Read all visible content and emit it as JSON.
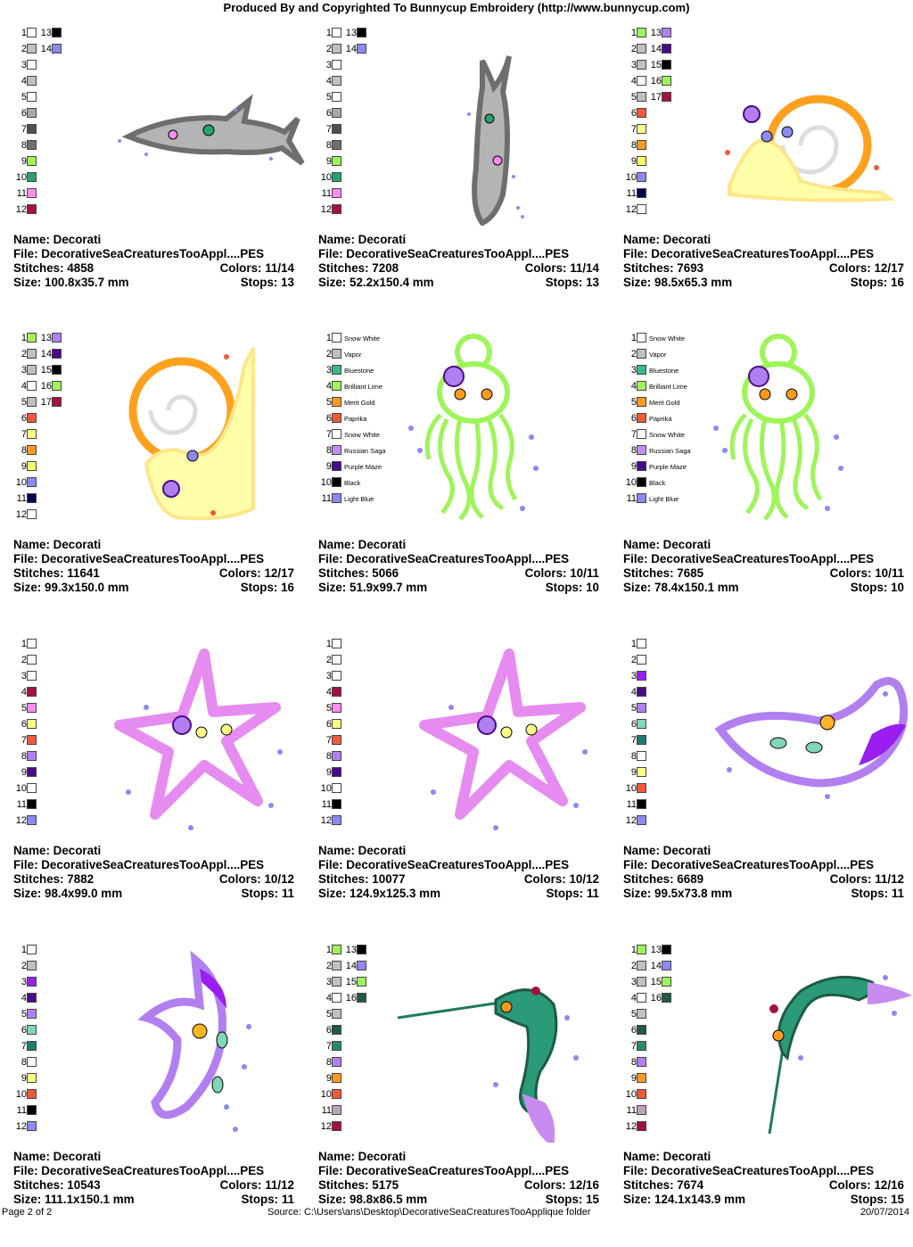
{
  "header": "Produced By and Copyrighted To Bunnycup Embroidery (http://www.bunnycup.com)",
  "labels": {
    "name": "Name:",
    "file": "File:",
    "stitches": "Stitches:",
    "colors": "Colors:",
    "size": "Size:",
    "stops": "Stops:"
  },
  "designs": [
    {
      "name": "Decorati",
      "file": "DecorativeSeaCreaturesTooAppl....PES",
      "stitches": "4858",
      "colors": "11/14",
      "size": "100.8x35.7 mm",
      "stops": "13",
      "art": "shark-h-icon",
      "swatches": [
        [
          "1",
          "#ffffff"
        ],
        [
          "2",
          "#c0c0c0"
        ],
        [
          "3",
          "#ffffff"
        ],
        [
          "4",
          "#c0c0c0"
        ],
        [
          "5",
          "#ffffff"
        ],
        [
          "6",
          "#a9a9a9"
        ],
        [
          "7",
          "#505050"
        ],
        [
          "8",
          "#6e6e6e"
        ],
        [
          "9",
          "#9ef55a"
        ],
        [
          "10",
          "#2aa36b"
        ],
        [
          "11",
          "#ff8cf0"
        ],
        [
          "12",
          "#a5113f"
        ],
        [
          "13",
          "#000000"
        ],
        [
          "14",
          "#8a8af0"
        ]
      ]
    },
    {
      "name": "Decorati",
      "file": "DecorativeSeaCreaturesTooAppl....PES",
      "stitches": "7208",
      "colors": "11/14",
      "size": "52.2x150.4 mm",
      "stops": "13",
      "art": "shark-v-icon",
      "swatches": [
        [
          "1",
          "#ffffff"
        ],
        [
          "2",
          "#c0c0c0"
        ],
        [
          "3",
          "#ffffff"
        ],
        [
          "4",
          "#c0c0c0"
        ],
        [
          "5",
          "#ffffff"
        ],
        [
          "6",
          "#a9a9a9"
        ],
        [
          "7",
          "#505050"
        ],
        [
          "8",
          "#6e6e6e"
        ],
        [
          "9",
          "#9ef55a"
        ],
        [
          "10",
          "#2aa36b"
        ],
        [
          "11",
          "#ff8cf0"
        ],
        [
          "12",
          "#a5113f"
        ],
        [
          "13",
          "#000000"
        ],
        [
          "14",
          "#8a8af0"
        ]
      ]
    },
    {
      "name": "Decorati",
      "file": "DecorativeSeaCreaturesTooAppl....PES",
      "stitches": "7693",
      "colors": "12/17",
      "size": "98.5x65.3 mm",
      "stops": "16",
      "art": "snail-icon",
      "swatches": [
        [
          "1",
          "#9ef55a"
        ],
        [
          "2",
          "#c0c0c0"
        ],
        [
          "3",
          "#c0c0c0"
        ],
        [
          "4",
          "#ffffff"
        ],
        [
          "5",
          "#c0c0c0"
        ],
        [
          "6",
          "#f05a3c"
        ],
        [
          "7",
          "#ffff88"
        ],
        [
          "8",
          "#ff9a1e"
        ],
        [
          "9",
          "#ffff66"
        ],
        [
          "10",
          "#8a8af0"
        ],
        [
          "11",
          "#000050"
        ],
        [
          "12",
          "#ffffff"
        ],
        [
          "13",
          "#b27ff0"
        ],
        [
          "14",
          "#4b0a8a"
        ],
        [
          "15",
          "#000000"
        ],
        [
          "16",
          "#9ef55a"
        ],
        [
          "17",
          "#a5113f"
        ]
      ]
    },
    {
      "name": "Decorati",
      "file": "DecorativeSeaCreaturesTooAppl....PES",
      "stitches": "11641",
      "colors": "12/17",
      "size": "99.3x150.0 mm",
      "stops": "16",
      "art": "snail-v-icon",
      "swatches": [
        [
          "1",
          "#9ef55a"
        ],
        [
          "2",
          "#c0c0c0"
        ],
        [
          "3",
          "#c0c0c0"
        ],
        [
          "4",
          "#ffffff"
        ],
        [
          "5",
          "#c0c0c0"
        ],
        [
          "6",
          "#f05a3c"
        ],
        [
          "7",
          "#ffff88"
        ],
        [
          "8",
          "#ff9a1e"
        ],
        [
          "9",
          "#ffff66"
        ],
        [
          "10",
          "#8a8af0"
        ],
        [
          "11",
          "#000050"
        ],
        [
          "12",
          "#ffffff"
        ],
        [
          "13",
          "#b27ff0"
        ],
        [
          "14",
          "#4b0a8a"
        ],
        [
          "15",
          "#000000"
        ],
        [
          "16",
          "#9ef55a"
        ],
        [
          "17",
          "#a5113f"
        ]
      ]
    },
    {
      "name": "Decorati",
      "file": "DecorativeSeaCreaturesTooAppl....PES",
      "stitches": "5066",
      "colors": "10/11",
      "size": "51.9x99.7 mm",
      "stops": "10",
      "art": "jellyfish-icon",
      "swatches": [
        [
          "1",
          "#ffffff",
          "Snow White"
        ],
        [
          "2",
          "#c0c0c0",
          "Vapor"
        ],
        [
          "3",
          "#3cb496",
          "Bluestone"
        ],
        [
          "4",
          "#9ef55a",
          "Brilliant Lime"
        ],
        [
          "5",
          "#ff9a1e",
          "Merit Gold"
        ],
        [
          "6",
          "#f05a3c",
          "Paprika"
        ],
        [
          "7",
          "#ffffff",
          "Snow White"
        ],
        [
          "8",
          "#c88cf0",
          "Russian Saga"
        ],
        [
          "9",
          "#4b0a8a",
          "Purple Maze"
        ],
        [
          "10",
          "#000000",
          "Black"
        ],
        [
          "11",
          "#8a8af0",
          "Light Blue"
        ]
      ]
    },
    {
      "name": "Decorati",
      "file": "DecorativeSeaCreaturesTooAppl....PES",
      "stitches": "7685",
      "colors": "10/11",
      "size": "78.4x150.1 mm",
      "stops": "10",
      "art": "jellyfish-icon",
      "swatches": [
        [
          "1",
          "#ffffff",
          "Snow White"
        ],
        [
          "2",
          "#c0c0c0",
          "Vapor"
        ],
        [
          "3",
          "#3cb496",
          "Bluestone"
        ],
        [
          "4",
          "#9ef55a",
          "Brilliant Lime"
        ],
        [
          "5",
          "#ff9a1e",
          "Merit Gold"
        ],
        [
          "6",
          "#f05a3c",
          "Paprika"
        ],
        [
          "7",
          "#ffffff",
          "Snow White"
        ],
        [
          "8",
          "#c88cf0",
          "Russian Saga"
        ],
        [
          "9",
          "#4b0a8a",
          "Purple Maze"
        ],
        [
          "10",
          "#000000",
          "Black"
        ],
        [
          "11",
          "#8a8af0",
          "Light Blue"
        ]
      ]
    },
    {
      "name": "Decorati",
      "file": "DecorativeSeaCreaturesTooAppl....PES",
      "stitches": "7882",
      "colors": "10/12",
      "size": "98.4x99.0 mm",
      "stops": "11",
      "art": "starfish-icon",
      "swatches": [
        [
          "1",
          "#ffffff"
        ],
        [
          "2",
          "#ffffff"
        ],
        [
          "3",
          "#ffffff"
        ],
        [
          "4",
          "#a5113f"
        ],
        [
          "5",
          "#ff8cf0"
        ],
        [
          "6",
          "#ffff88"
        ],
        [
          "7",
          "#f05a3c"
        ],
        [
          "8",
          "#b27ff0"
        ],
        [
          "9",
          "#4b0a8a"
        ],
        [
          "10",
          "#ffffff"
        ],
        [
          "11",
          "#000000"
        ],
        [
          "12",
          "#8a8af0"
        ]
      ]
    },
    {
      "name": "Decorati",
      "file": "DecorativeSeaCreaturesTooAppl....PES",
      "stitches": "10077",
      "colors": "10/12",
      "size": "124.9x125.3 mm",
      "stops": "11",
      "art": "starfish-icon",
      "swatches": [
        [
          "1",
          "#ffffff"
        ],
        [
          "2",
          "#ffffff"
        ],
        [
          "3",
          "#ffffff"
        ],
        [
          "4",
          "#a5113f"
        ],
        [
          "5",
          "#ff8cf0"
        ],
        [
          "6",
          "#ffff88"
        ],
        [
          "7",
          "#f05a3c"
        ],
        [
          "8",
          "#b27ff0"
        ],
        [
          "9",
          "#4b0a8a"
        ],
        [
          "10",
          "#ffffff"
        ],
        [
          "11",
          "#000000"
        ],
        [
          "12",
          "#8a8af0"
        ]
      ]
    },
    {
      "name": "Decorati",
      "file": "DecorativeSeaCreaturesTooAppl....PES",
      "stitches": "6689",
      "colors": "11/12",
      "size": "99.5x73.8 mm",
      "stops": "11",
      "art": "ray-icon",
      "swatches": [
        [
          "1",
          "#ffffff"
        ],
        [
          "2",
          "#ffffff"
        ],
        [
          "3",
          "#9a1ef0"
        ],
        [
          "4",
          "#4b0a8a"
        ],
        [
          "5",
          "#b27ff0"
        ],
        [
          "6",
          "#7fd6b9"
        ],
        [
          "7",
          "#1e7a6e"
        ],
        [
          "8",
          "#ffffff"
        ],
        [
          "9",
          "#ffff88"
        ],
        [
          "10",
          "#f05a3c"
        ],
        [
          "11",
          "#000000"
        ],
        [
          "12",
          "#8a8af0"
        ]
      ]
    },
    {
      "name": "Decorati",
      "file": "DecorativeSeaCreaturesTooAppl....PES",
      "stitches": "10543",
      "colors": "11/12",
      "size": "111.1x150.1 mm",
      "stops": "11",
      "art": "ray-v-icon",
      "swatches": [
        [
          "1",
          "#ffffff"
        ],
        [
          "2",
          "#c0c0c0"
        ],
        [
          "3",
          "#9a1ef0"
        ],
        [
          "4",
          "#4b0a8a"
        ],
        [
          "5",
          "#b27ff0"
        ],
        [
          "6",
          "#7fd6b9"
        ],
        [
          "7",
          "#1e7a6e"
        ],
        [
          "8",
          "#ffffff"
        ],
        [
          "9",
          "#ffff88"
        ],
        [
          "10",
          "#f05a3c"
        ],
        [
          "11",
          "#000000"
        ],
        [
          "12",
          "#8a8af0"
        ]
      ]
    },
    {
      "name": "Decorati",
      "file": "DecorativeSeaCreaturesTooAppl....PES",
      "stitches": "5175",
      "colors": "12/16",
      "size": "98.8x86.5 mm",
      "stops": "15",
      "art": "swordfish-icon",
      "swatches": [
        [
          "1",
          "#9ef55a"
        ],
        [
          "2",
          "#c0c0c0"
        ],
        [
          "3",
          "#c0c0c0"
        ],
        [
          "4",
          "#ffffff"
        ],
        [
          "5",
          "#c0c0c0"
        ],
        [
          "6",
          "#1e5a46"
        ],
        [
          "7",
          "#2a8a6e"
        ],
        [
          "8",
          "#b27ff0"
        ],
        [
          "9",
          "#ff9a1e"
        ],
        [
          "10",
          "#f05a3c"
        ],
        [
          "11",
          "#c0a0c0"
        ],
        [
          "12",
          "#a5113f"
        ],
        [
          "13",
          "#000000"
        ],
        [
          "14",
          "#8a8af0"
        ],
        [
          "15",
          "#9ef55a"
        ],
        [
          "16",
          "#1e5a46"
        ]
      ]
    },
    {
      "name": "Decorati",
      "file": "DecorativeSeaCreaturesTooAppl....PES",
      "stitches": "7674",
      "colors": "12/16",
      "size": "124.1x143.9 mm",
      "stops": "15",
      "art": "swordfish-v-icon",
      "swatches": [
        [
          "1",
          "#9ef55a"
        ],
        [
          "2",
          "#c0c0c0"
        ],
        [
          "3",
          "#c0c0c0"
        ],
        [
          "4",
          "#ffffff"
        ],
        [
          "5",
          "#c0c0c0"
        ],
        [
          "6",
          "#1e5a46"
        ],
        [
          "7",
          "#2a8a6e"
        ],
        [
          "8",
          "#b27ff0"
        ],
        [
          "9",
          "#ff9a1e"
        ],
        [
          "10",
          "#f05a3c"
        ],
        [
          "11",
          "#c0a0c0"
        ],
        [
          "12",
          "#a5113f"
        ],
        [
          "13",
          "#000000"
        ],
        [
          "14",
          "#8a8af0"
        ],
        [
          "15",
          "#9ef55a"
        ],
        [
          "16",
          "#1e5a46"
        ]
      ]
    }
  ],
  "footer": {
    "page": "Page 2 of 2",
    "source": "Source: C:\\Users\\ans\\Desktop\\DecorativeSeaCreaturesTooApplique folder",
    "date": "20/07/2014"
  }
}
